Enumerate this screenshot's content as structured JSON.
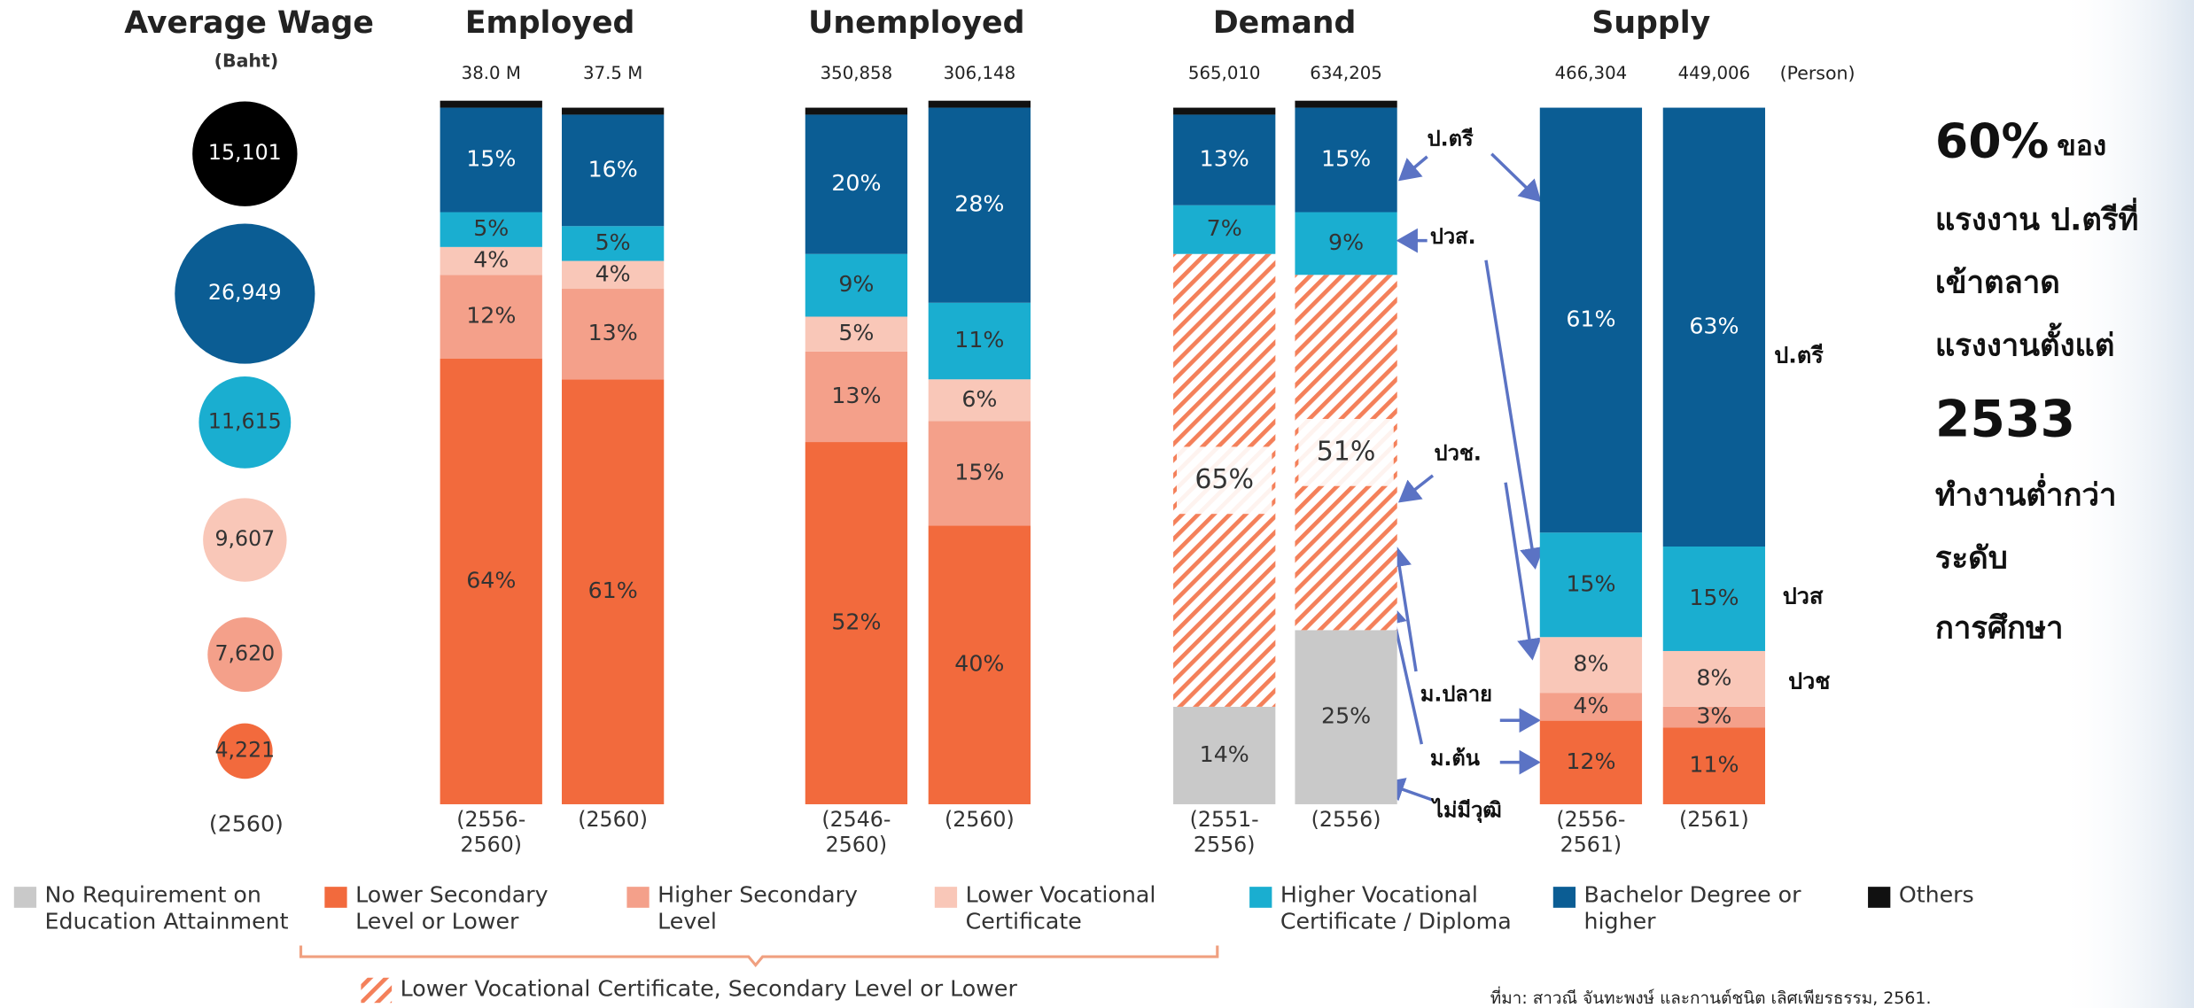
{
  "chart_data": {
    "type": "stacked_bar",
    "groups": [
      {
        "title": "Employed",
        "total_labels": [
          "38.0 M",
          "37.5 M"
        ]
      },
      {
        "title": "Unemployed",
        "total_labels": [
          "350,858",
          "306,148"
        ]
      },
      {
        "title": "Demand",
        "total_labels": [
          "565,010",
          "634,205"
        ]
      },
      {
        "title": "Supply",
        "total_labels": [
          "466,304",
          "449,006"
        ]
      }
    ],
    "unit": "(Person)",
    "categories": [
      "(2556-2560)",
      "(2560)",
      "(2546-2560)",
      "(2560)",
      "(2551-2556)",
      "(2556)",
      "(2556-2561)",
      "(2561)"
    ],
    "ylim": [
      0,
      101
    ],
    "series": [
      {
        "name": "No Requirement on Education Attainment",
        "color": "#c9c9c9",
        "values": [
          null,
          null,
          null,
          null,
          14,
          25,
          null,
          null
        ],
        "value_labels": [
          null,
          null,
          null,
          null,
          "14%",
          "25%",
          null,
          null
        ]
      },
      {
        "name": "Lower Secondary Level or Lower",
        "color": "#f26a3d",
        "values": [
          64,
          61,
          52,
          40,
          null,
          null,
          12,
          11
        ],
        "value_labels": [
          "64%",
          "61%",
          "52%",
          "40%",
          null,
          null,
          "12%",
          "11%"
        ]
      },
      {
        "name": "Higher Secondary Level",
        "color": "#f4a08a",
        "values": [
          12,
          13,
          13,
          15,
          null,
          null,
          4,
          3
        ],
        "value_labels": [
          "12%",
          "13%",
          "13%",
          "15%",
          null,
          null,
          "4%",
          "3%"
        ]
      },
      {
        "name": "Lower Vocational Certificate",
        "color": "#f9c7b8",
        "values": [
          4,
          4,
          5,
          6,
          null,
          null,
          8,
          8
        ],
        "value_labels": [
          "4%",
          "4%",
          "5%",
          "6%",
          null,
          null,
          "8%",
          "8%"
        ]
      },
      {
        "name": "Lower Vocational Certificate, Secondary Level or Lower",
        "color": "#f26a3d",
        "pattern": "hatch",
        "values": [
          null,
          null,
          null,
          null,
          65,
          51,
          null,
          null
        ],
        "value_labels": [
          null,
          null,
          null,
          null,
          "65%",
          "51%",
          null,
          null
        ]
      },
      {
        "name": "Higher Vocational Certificate / Diploma",
        "color": "#1aaed0",
        "values": [
          5,
          5,
          9,
          11,
          7,
          9,
          15,
          15
        ],
        "value_labels": [
          "5%",
          "5%",
          "9%",
          "11%",
          "7%",
          "9%",
          "15%",
          "15%"
        ]
      },
      {
        "name": "Bachelor Degree or higher",
        "color": "#0b5d94",
        "values": [
          15,
          16,
          20,
          28,
          13,
          15,
          61,
          63
        ],
        "value_labels": [
          "15%",
          "16%",
          "20%",
          "28%",
          "13%",
          "15%",
          "61%",
          "63%"
        ]
      },
      {
        "name": "Others",
        "color": "#111111",
        "values": [
          1,
          1,
          1,
          1,
          1,
          1,
          null,
          null
        ],
        "value_labels": [
          null,
          null,
          null,
          null,
          null,
          null,
          null,
          null
        ]
      }
    ]
  },
  "wage": {
    "title": "Average Wage",
    "unit": "(Baht)",
    "year": "(2560)",
    "values": [
      15101,
      26949,
      11615,
      9607,
      7620,
      4221
    ],
    "value_labels": [
      "15,101",
      "26,949",
      "11,615",
      "9,607",
      "7,620",
      "4,221"
    ],
    "colors": [
      "#000000",
      "#0b5d94",
      "#1aaed0",
      "#f9c7b8",
      "#f4a08a",
      "#f26a3d"
    ]
  },
  "annotations": {
    "arrow_labels": [
      "ป.ตรี",
      "ปวส.",
      "ปวช.",
      "ม.ปลาย",
      "ม.ต้น",
      "ไม่มีวุฒิ"
    ],
    "supply_labels": [
      "ป.ตรี",
      "ปวส",
      "ปวช"
    ],
    "side_note": [
      "60%",
      "ของ",
      "แรงงาน ป.ตรีที่",
      "เข้าตลาด",
      "แรงงานตั้งแต่",
      "2533",
      "ทำงานต่ำกว่า",
      "ระดับ",
      "การศึกษา"
    ],
    "source": "ที่มา: สาวณี จันทะพงษ์ และกานต์ชนิต เลิศเพียรธรรม, 2561."
  }
}
